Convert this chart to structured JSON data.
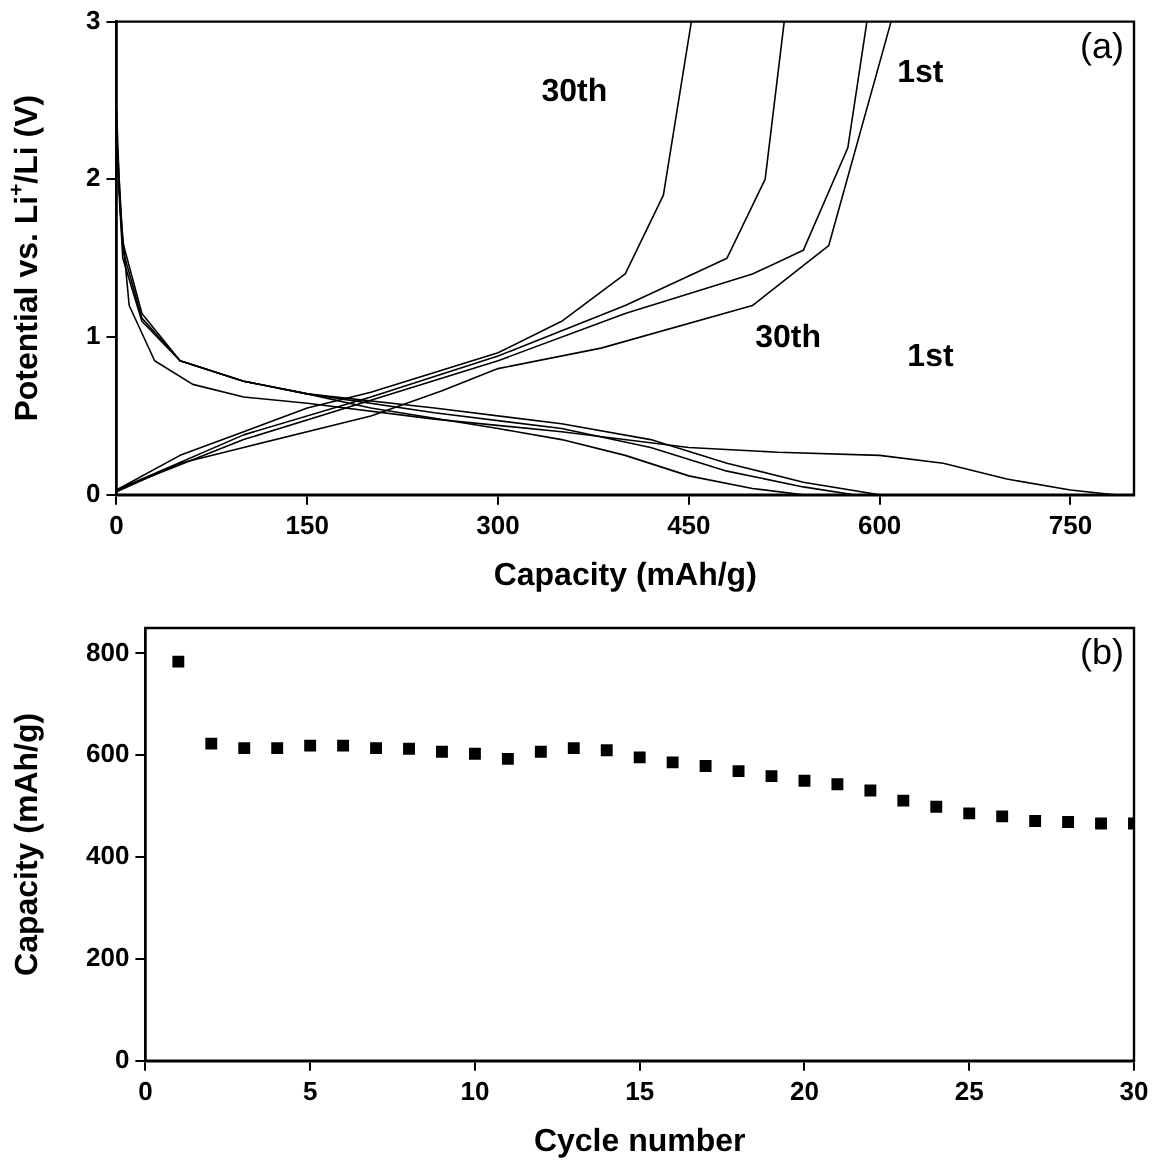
{
  "chart_data": [
    {
      "type": "line",
      "xlabel": "Capacity (mAh/g)",
      "ylabel": "Potential vs. Li$^{+}$/Li (V)",
      "xlim": [
        0,
        800
      ],
      "xticks": [
        0,
        150,
        300,
        450,
        600,
        750
      ],
      "ylim": [
        0,
        3
      ],
      "yticks": [
        0,
        1,
        2,
        3
      ],
      "grid": false,
      "legend": false,
      "marker": "none",
      "line_style": "solid",
      "annotations": [
        "(a)",
        "30th",
        "1st",
        "30th",
        "1st"
      ],
      "series": [
        {
          "color": "#000000",
          "x": [
            0,
            3,
            10,
            30,
            60,
            100,
            150,
            250,
            350,
            450,
            520,
            600,
            650,
            700,
            750,
            785
          ],
          "values": [
            2.45,
            1.8,
            1.2,
            0.85,
            0.7,
            0.62,
            0.58,
            0.48,
            0.4,
            0.3,
            0.27,
            0.25,
            0.2,
            0.1,
            0.03,
            0
          ]
        },
        {
          "color": "#000000",
          "x": [
            0,
            50,
            100,
            200,
            256,
            300,
            381,
            500,
            560,
            609
          ],
          "values": [
            0.02,
            0.2,
            0.3,
            0.5,
            0.66,
            0.8,
            0.93,
            1.2,
            1.58,
            3
          ]
        },
        {
          "color": "#000000",
          "x": [
            0,
            5,
            20,
            50,
            100,
            150,
            250,
            350,
            420,
            480,
            540,
            600
          ],
          "values": [
            2.3,
            1.6,
            1.15,
            0.85,
            0.72,
            0.64,
            0.55,
            0.45,
            0.35,
            0.2,
            0.08,
            0
          ]
        },
        {
          "color": "#000000",
          "x": [
            0,
            100,
            200,
            300,
            400,
            500,
            540,
            575,
            590
          ],
          "values": [
            0.03,
            0.35,
            0.6,
            0.85,
            1.15,
            1.4,
            1.55,
            2.2,
            3
          ]
        },
        {
          "color": "#000000",
          "x": [
            0,
            5,
            20,
            50,
            100,
            150,
            250,
            350,
            420,
            480,
            540,
            580
          ],
          "values": [
            2.25,
            1.55,
            1.12,
            0.85,
            0.72,
            0.64,
            0.52,
            0.42,
            0.3,
            0.15,
            0.05,
            0
          ]
        },
        {
          "color": "#000000",
          "x": [
            0,
            100,
            200,
            300,
            400,
            480,
            510,
            525
          ],
          "values": [
            0.03,
            0.38,
            0.62,
            0.88,
            1.2,
            1.5,
            2,
            3
          ]
        },
        {
          "color": "#000000",
          "x": [
            0,
            5,
            20,
            50,
            100,
            150,
            200,
            300,
            350,
            400,
            450,
            500,
            540
          ],
          "values": [
            2.2,
            1.5,
            1.1,
            0.85,
            0.72,
            0.64,
            0.55,
            0.42,
            0.35,
            0.25,
            0.12,
            0.04,
            0
          ]
        },
        {
          "color": "#000000",
          "x": [
            0,
            50,
            100,
            150,
            200,
            300,
            350,
            400,
            430,
            452
          ],
          "values": [
            0.03,
            0.25,
            0.4,
            0.55,
            0.65,
            0.9,
            1.1,
            1.4,
            1.9,
            3
          ]
        }
      ]
    },
    {
      "type": "scatter",
      "xlabel": "Cycle number",
      "ylabel": "Capacity (mAh/g)",
      "xlim": [
        0,
        30
      ],
      "xticks": [
        0,
        5,
        10,
        15,
        20,
        25,
        30
      ],
      "ylim": [
        0,
        850
      ],
      "yticks": [
        0,
        200,
        400,
        600,
        800
      ],
      "grid": false,
      "legend": false,
      "marker": "square",
      "annotations": [
        "(b)"
      ],
      "x": [
        1,
        2,
        3,
        4,
        5,
        6,
        7,
        8,
        9,
        10,
        11,
        12,
        13,
        14,
        15,
        16,
        17,
        18,
        19,
        20,
        21,
        22,
        23,
        24,
        25,
        26,
        27,
        28,
        29,
        30
      ],
      "values": [
        784,
        623,
        614,
        614,
        619,
        619,
        614,
        613,
        607,
        603,
        593,
        607,
        614,
        610,
        596,
        586,
        579,
        569,
        559,
        550,
        543,
        531,
        511,
        499,
        486,
        480,
        471,
        469,
        466,
        466
      ],
      "color": "#000000"
    }
  ]
}
